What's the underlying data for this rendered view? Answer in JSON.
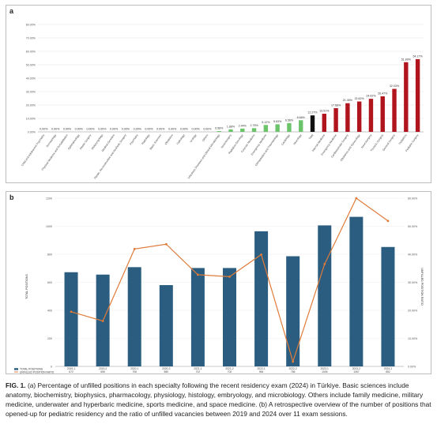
{
  "panel_a_label": "a",
  "panel_b_label": "b",
  "caption": {
    "lead": "FIG. 1.",
    "text": "(a) Percentage of unfilled positions in each specialty following the recent residency exam (2024) in Türkiye. Basic sciences include anatomy, biochemistry, biophysics, pharmacology, physiology, histology, embryology, and microbiology. Others include family medicine, military medicine, underwater and hyperbaric medicine, sports medicine, and space medicine. (b) A retrospective overview of the number of positions that opened-up for pediatric residency and the ratio of unfilled vacancies between 2019 and 2024 over 11 exam sessions."
  },
  "colors": {
    "red": "#b0141c",
    "black": "#111111",
    "green": "#6cc46a",
    "blue": "#2a5d80",
    "orange": "#e07b39"
  },
  "chart_data": [
    {
      "type": "bar",
      "ylim": [
        0,
        0.8
      ],
      "yticks": [
        "0.00%",
        "10.00%",
        "20.00%",
        "30.00%",
        "40.00%",
        "50.00%",
        "60.00%",
        "70.00%",
        "80.00%"
      ],
      "categories": [
        "Child and Adolescent Psychiatry",
        "Dermatology",
        "Physical Medicine and Rehabilitation",
        "Ophthalmology",
        "Plastic Surgery",
        "Otolaryngology",
        "Medical Genetics",
        "Plastic, Reconstructive and Aesthetic Surgery",
        "Psychiatry",
        "Radiology",
        "Basic Sciences",
        "Obstetrics",
        "Pathology",
        "Urology",
        "Others",
        "Infectious Diseases and Clinical Microbiology",
        "Neurosurgery",
        "Radiation Oncology",
        "Forensic Medicine",
        "Emergency Medicine",
        "Orthopaedics and Traumatology",
        "Cardiology",
        "Neurology",
        "Total",
        "Internal Medicine",
        "Emergency Medicine",
        "Cardiovascular Surgery",
        "Obstetrics and Gynecology",
        "Neurosurgery",
        "Thoracic Surgery",
        "General Surgery",
        "Pediatrics",
        "Pediatric Surgery"
      ],
      "values": [
        0,
        0,
        0,
        0,
        0,
        0,
        0,
        0,
        0,
        0,
        0,
        0,
        0,
        0,
        0,
        0.0058,
        0.0186,
        0.0244,
        0.0275,
        0.0512,
        0.0563,
        0.0656,
        0.0866,
        0.1227,
        0.1351,
        0.1768,
        0.2135,
        0.2262,
        0.2462,
        0.2647,
        0.3203,
        0.5189,
        0.5417
      ],
      "labels": [
        "0.00%",
        "0.00%",
        "0.00%",
        "0.00%",
        "0.00%",
        "0.00%",
        "0.00%",
        "0.00%",
        "0.00%",
        "0.00%",
        "0.00%",
        "0.00%",
        "0.00%",
        "0.00%",
        "0.00%",
        "0.58%",
        "1.86%",
        "2.44%",
        "2.75%",
        "5.12%",
        "5.63%",
        "6.56%",
        "8.66%",
        "12.27%",
        "13.51%",
        "17.68%",
        "21.35%",
        "22.62%",
        "24.62%",
        "26.47%",
        "32.03%",
        "51.89%",
        "54.17%"
      ],
      "bar_colors": [
        "green",
        "green",
        "green",
        "green",
        "green",
        "green",
        "green",
        "green",
        "green",
        "green",
        "green",
        "green",
        "green",
        "green",
        "green",
        "green",
        "green",
        "green",
        "green",
        "green",
        "green",
        "green",
        "green",
        "black",
        "red",
        "red",
        "red",
        "red",
        "red",
        "red",
        "red",
        "red",
        "red"
      ]
    },
    {
      "type": "bar+line",
      "ylabel_left": "TOTAL POSITIONS",
      "ylabel_right": "UNFILLED POSITION RATIO",
      "yticks_left": [
        "0",
        "200",
        "400",
        "600",
        "800",
        "1000",
        "1200"
      ],
      "yticks_right": [
        "0.00%",
        "10.00%",
        "20.00%",
        "30.00%",
        "40.00%",
        "50.00%",
        "60.00%"
      ],
      "ylim_left": [
        0,
        1200
      ],
      "ylim_right": [
        0,
        0.6
      ],
      "categories": [
        "2019-1",
        "2019-2",
        "2020-1",
        "2020-2",
        "2021-1",
        "2021-2",
        "2022-1",
        "2022-2",
        "2023-1",
        "2023-2",
        "2024-1"
      ],
      "series": [
        {
          "name": "TOTAL POSITIONS",
          "values": [
            672,
            655,
            708,
            580,
            702,
            702,
            964,
            786,
            1006,
            1067,
            852
          ],
          "labels": [
            "672",
            "655",
            "708",
            "580",
            "702",
            "702",
            "964",
            "786",
            "1006",
            "1067",
            "852"
          ]
        },
        {
          "name": "UNFILLED POSITION RATIO",
          "values": [
            0.195,
            0.162,
            0.419,
            0.436,
            0.327,
            0.32,
            0.399,
            0.017,
            0.365,
            0.6,
            0.519
          ],
          "labels": [
            "19.5%",
            "16.2%",
            "41.9%",
            "43.6%",
            "32.7%",
            "32.0%",
            "39.9%",
            "1.7%",
            "36.5%",
            "60.0%",
            "51.9%"
          ]
        }
      ]
    }
  ]
}
